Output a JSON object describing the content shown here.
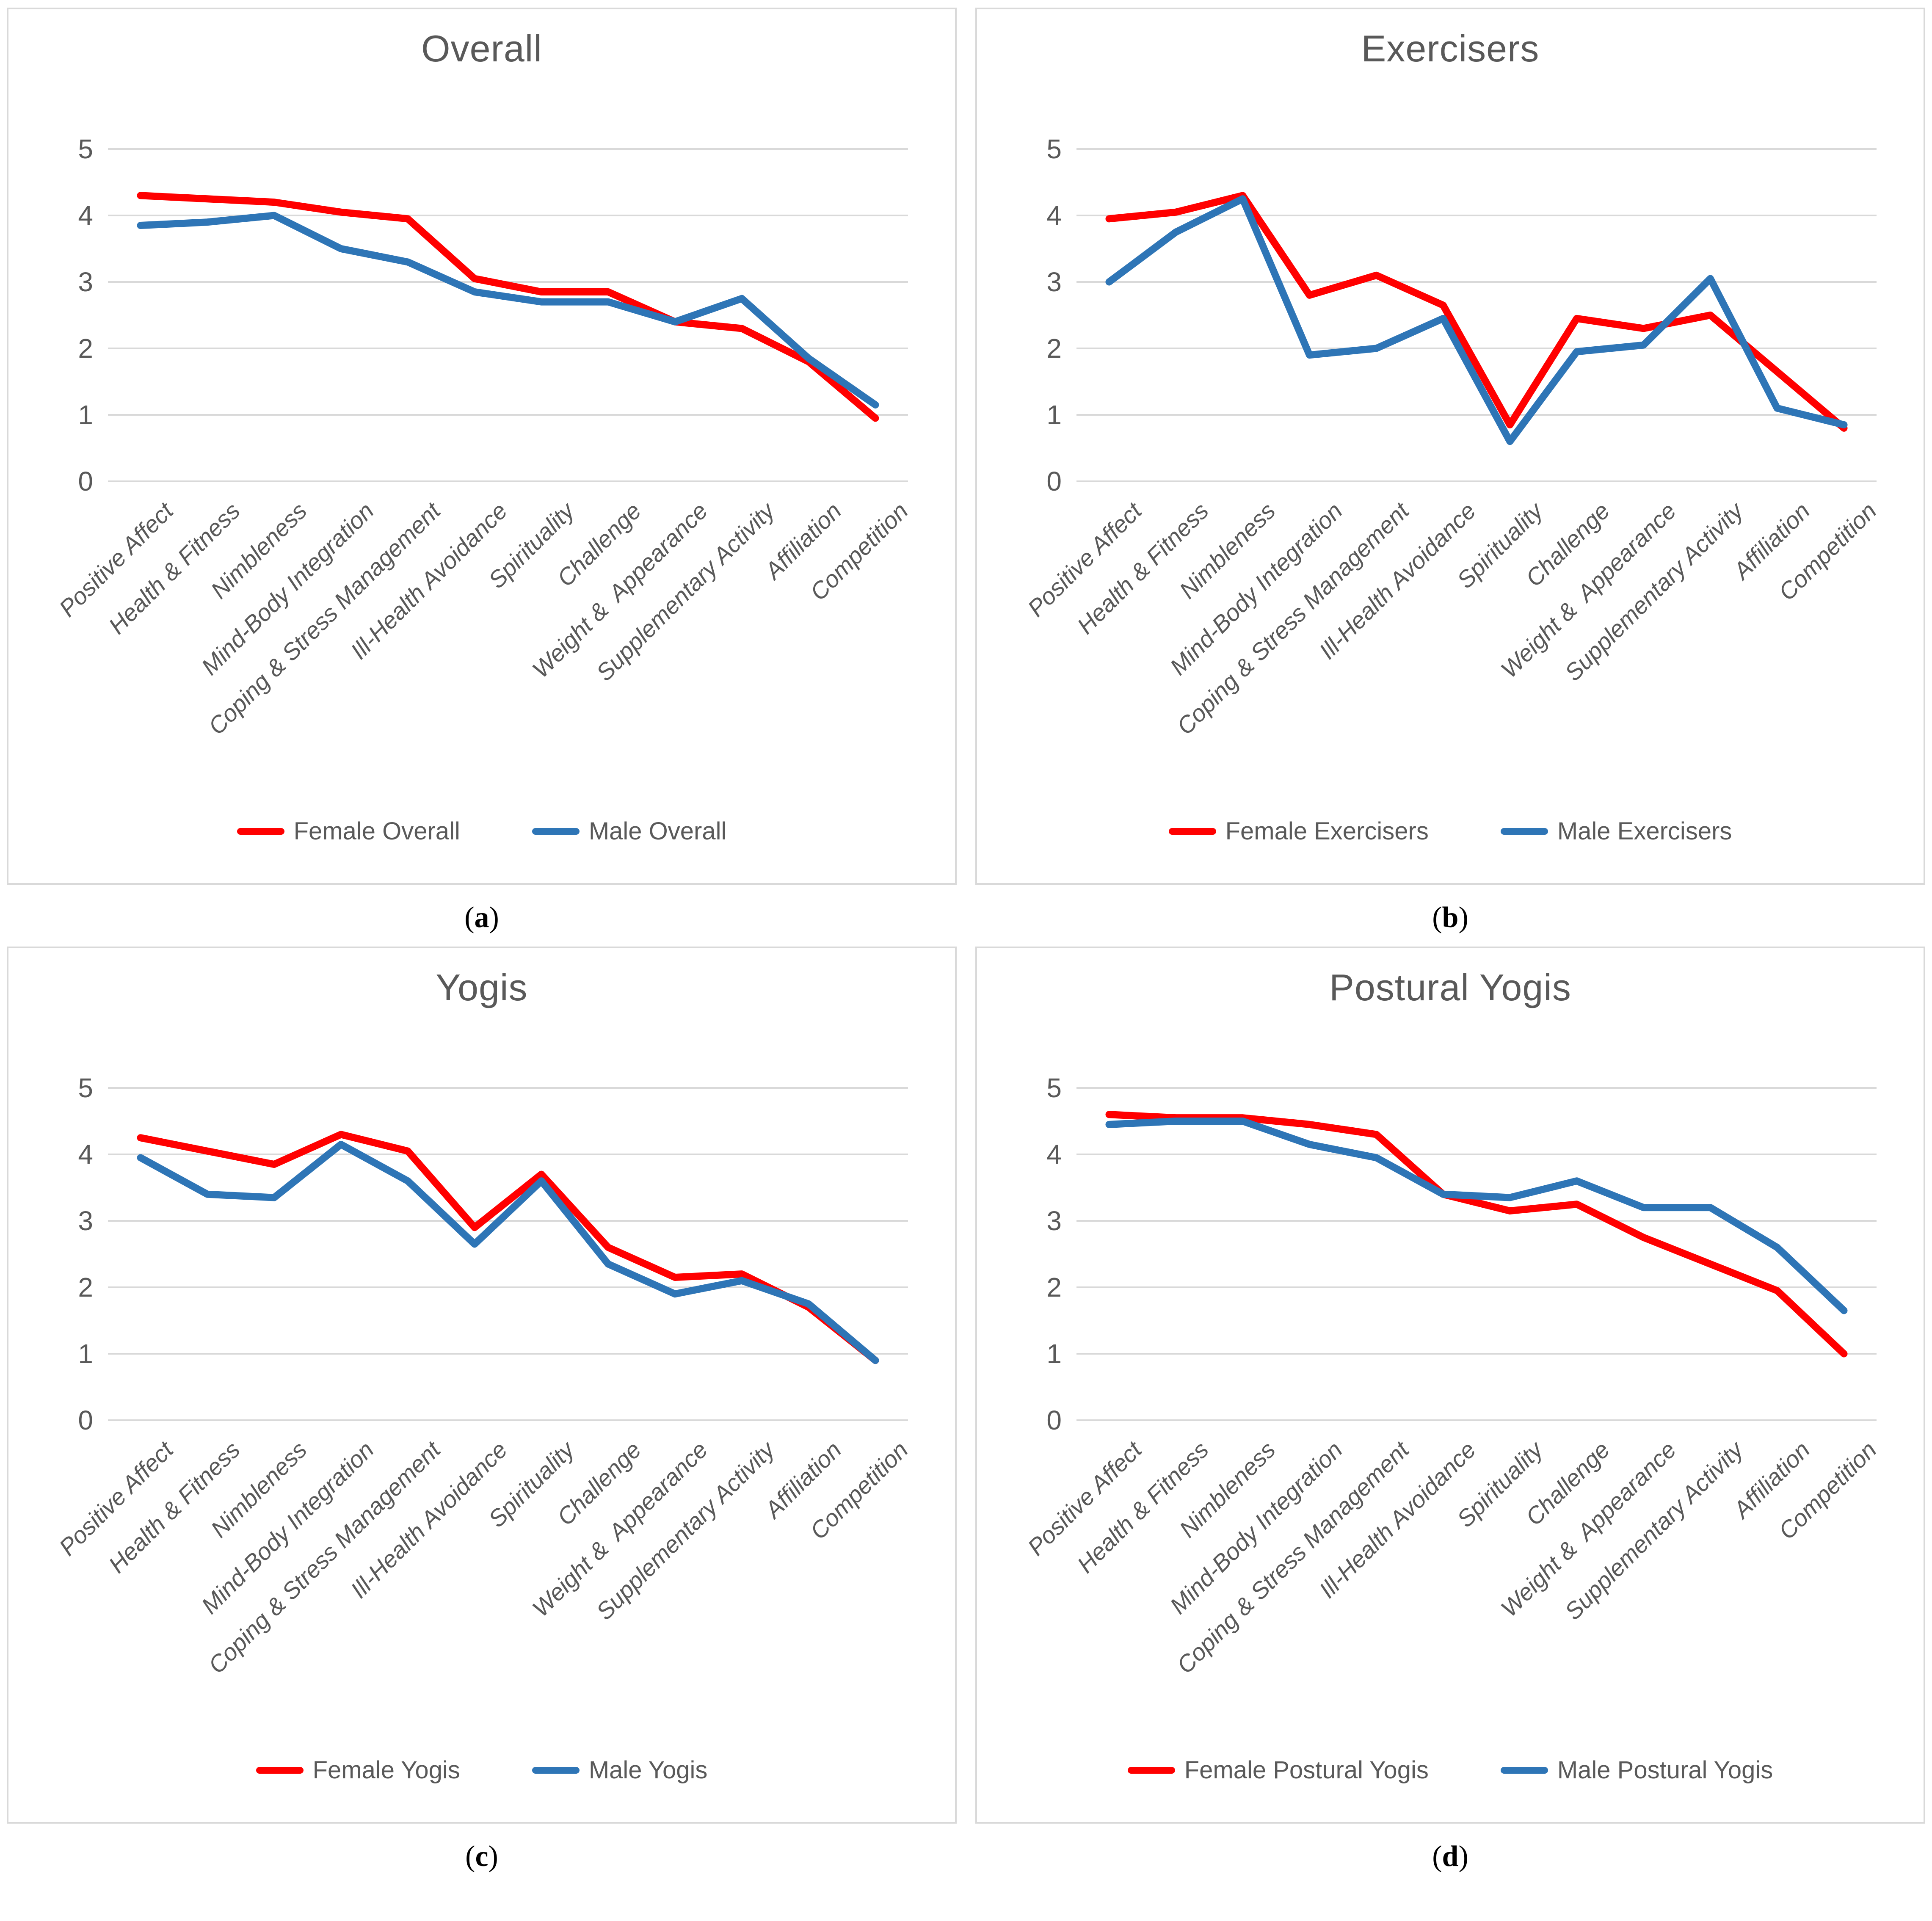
{
  "colors": {
    "female": "#ff0000",
    "male": "#2e75b6",
    "gridline": "#d9d9d9",
    "panel_border": "#d9d9d9",
    "title_text": "#595959",
    "axis_text": "#595959"
  },
  "y_axis": {
    "min": 0,
    "max": 5,
    "ticks": [
      0,
      1,
      2,
      3,
      4,
      5
    ]
  },
  "categories": [
    "Positive Affect",
    "Health & Fitness",
    "Nimbleness",
    "Mind-Body Integration",
    "Coping & Stress Management",
    "Ill-Health Avoidance",
    "Spirituality",
    "Challenge",
    "Weight &  Appearance",
    "Supplementary Activity",
    "Affiliation",
    "Competition"
  ],
  "chart_data": [
    {
      "type": "line",
      "title": "Overall",
      "caption_letter": "a",
      "ylim": [
        0,
        5
      ],
      "yticks": [
        0,
        1,
        2,
        3,
        4,
        5
      ],
      "grid": true,
      "legend_position": "bottom",
      "categories": [
        "Positive Affect",
        "Health & Fitness",
        "Nimbleness",
        "Mind-Body Integration",
        "Coping & Stress Management",
        "Ill-Health Avoidance",
        "Spirituality",
        "Challenge",
        "Weight &  Appearance",
        "Supplementary Activity",
        "Affiliation",
        "Competition"
      ],
      "series": [
        {
          "name": "Female Overall",
          "color": "#ff0000",
          "values": [
            4.3,
            4.25,
            4.2,
            4.05,
            3.95,
            3.05,
            2.85,
            2.85,
            2.4,
            2.3,
            1.8,
            0.95
          ]
        },
        {
          "name": "Male Overall",
          "color": "#2e75b6",
          "values": [
            3.85,
            3.9,
            4.0,
            3.5,
            3.3,
            2.85,
            2.7,
            2.7,
            2.4,
            2.75,
            1.85,
            1.15
          ]
        }
      ]
    },
    {
      "type": "line",
      "title": "Exercisers",
      "caption_letter": "b",
      "ylim": [
        0,
        5
      ],
      "yticks": [
        0,
        1,
        2,
        3,
        4,
        5
      ],
      "grid": true,
      "legend_position": "bottom",
      "categories": [
        "Positive Affect",
        "Health & Fitness",
        "Nimbleness",
        "Mind-Body Integration",
        "Coping & Stress Management",
        "Ill-Health Avoidance",
        "Spirituality",
        "Challenge",
        "Weight &  Appearance",
        "Supplementary Activity",
        "Affiliation",
        "Competition"
      ],
      "series": [
        {
          "name": "Female Exercisers",
          "color": "#ff0000",
          "values": [
            3.95,
            4.05,
            4.3,
            2.8,
            3.1,
            2.65,
            0.85,
            2.45,
            2.3,
            2.5,
            1.65,
            0.8
          ]
        },
        {
          "name": "Male Exercisers",
          "color": "#2e75b6",
          "values": [
            3.0,
            3.75,
            4.25,
            1.9,
            2.0,
            2.45,
            0.6,
            1.95,
            2.05,
            3.05,
            1.1,
            0.85
          ]
        }
      ]
    },
    {
      "type": "line",
      "title": "Yogis",
      "caption_letter": "c",
      "ylim": [
        0,
        5
      ],
      "yticks": [
        0,
        1,
        2,
        3,
        4,
        5
      ],
      "grid": true,
      "legend_position": "bottom",
      "categories": [
        "Positive Affect",
        "Health & Fitness",
        "Nimbleness",
        "Mind-Body Integration",
        "Coping & Stress Management",
        "Ill-Health Avoidance",
        "Spirituality",
        "Challenge",
        "Weight &  Appearance",
        "Supplementary Activity",
        "Affiliation",
        "Competition"
      ],
      "series": [
        {
          "name": "Female Yogis",
          "color": "#ff0000",
          "values": [
            4.25,
            4.05,
            3.85,
            4.3,
            4.05,
            2.9,
            3.7,
            2.6,
            2.15,
            2.2,
            1.7,
            0.9
          ]
        },
        {
          "name": "Male Yogis",
          "color": "#2e75b6",
          "values": [
            3.95,
            3.4,
            3.35,
            4.15,
            3.6,
            2.65,
            3.6,
            2.35,
            1.9,
            2.1,
            1.75,
            0.9
          ]
        }
      ]
    },
    {
      "type": "line",
      "title": "Postural Yogis",
      "caption_letter": "d",
      "ylim": [
        0,
        5
      ],
      "yticks": [
        0,
        1,
        2,
        3,
        4,
        5
      ],
      "grid": true,
      "legend_position": "bottom",
      "categories": [
        "Positive Affect",
        "Health & Fitness",
        "Nimbleness",
        "Mind-Body Integration",
        "Coping & Stress Management",
        "Ill-Health Avoidance",
        "Spirituality",
        "Challenge",
        "Weight &  Appearance",
        "Supplementary Activity",
        "Affiliation",
        "Competition"
      ],
      "series": [
        {
          "name": "Female Postural Yogis",
          "color": "#ff0000",
          "values": [
            4.6,
            4.55,
            4.55,
            4.45,
            4.3,
            3.4,
            3.15,
            3.25,
            2.75,
            2.35,
            1.95,
            1.0
          ]
        },
        {
          "name": "Male Postural Yogis",
          "color": "#2e75b6",
          "values": [
            4.45,
            4.5,
            4.5,
            4.15,
            3.95,
            3.4,
            3.35,
            3.6,
            3.2,
            3.2,
            2.6,
            1.65
          ]
        }
      ]
    }
  ]
}
